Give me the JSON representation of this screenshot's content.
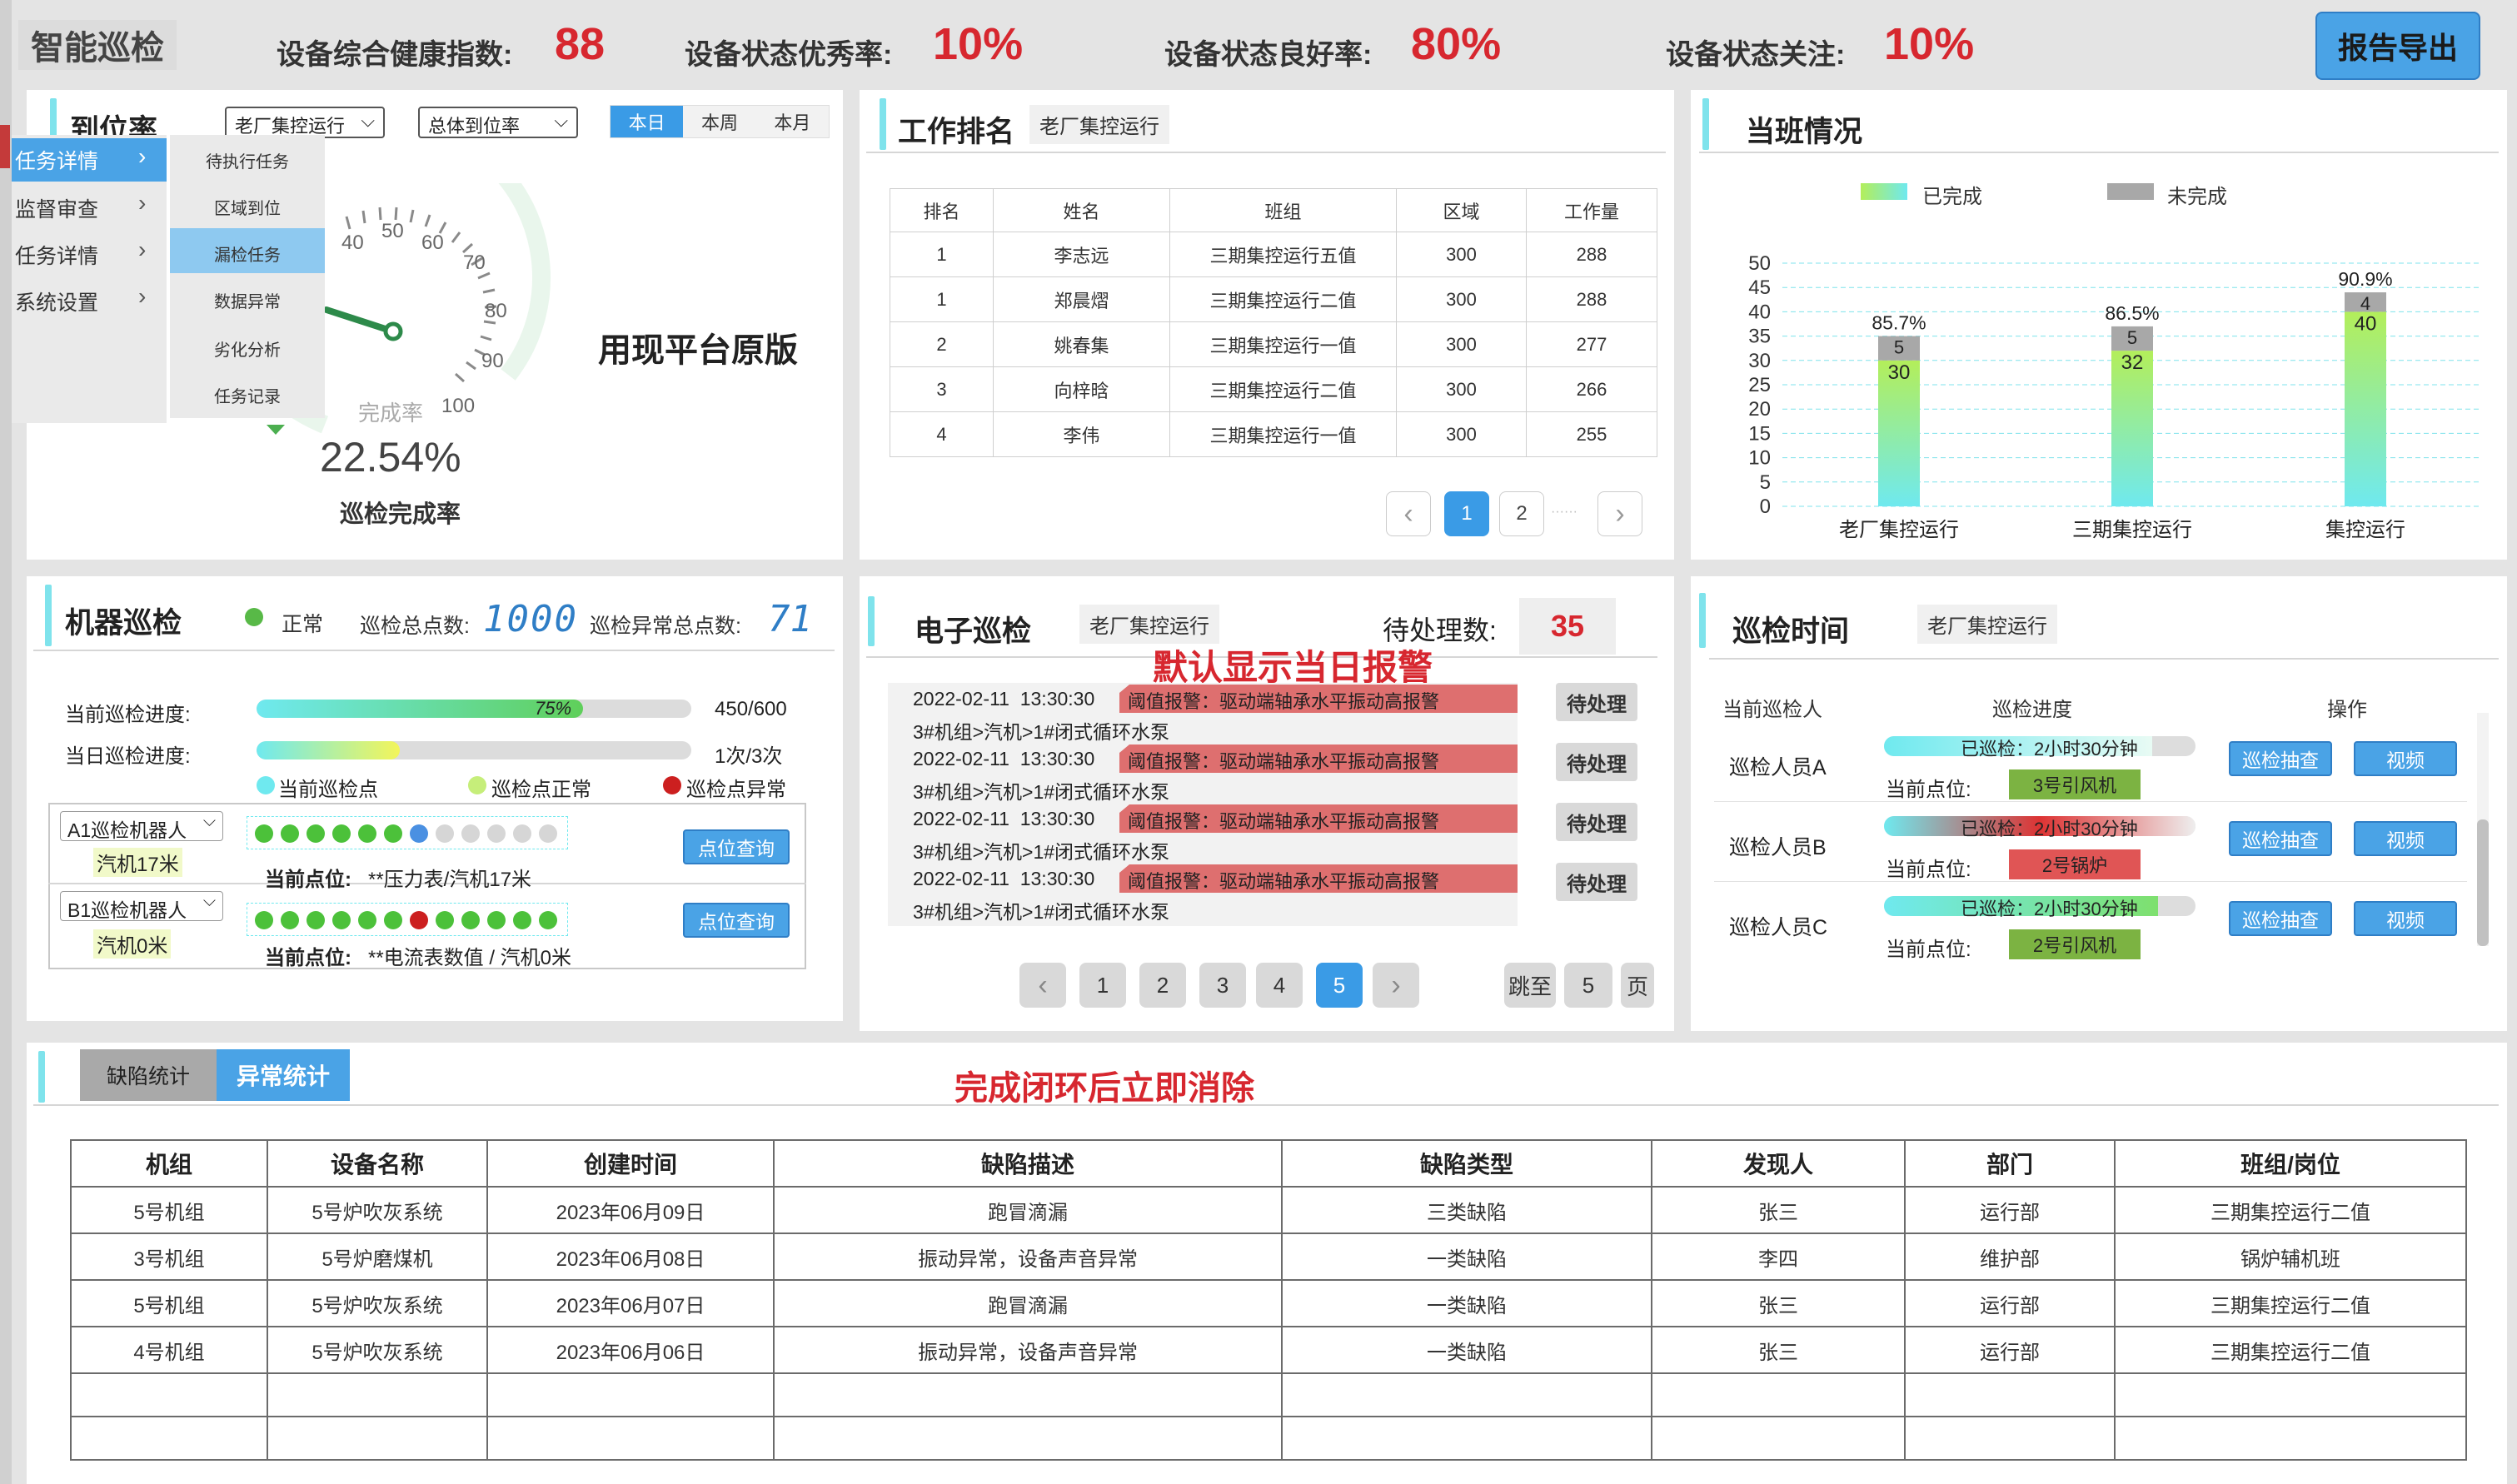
{
  "header": {
    "title": "智能巡检",
    "stats": [
      {
        "label": "设备综合健康指数:",
        "value": "88"
      },
      {
        "label": "设备状态优秀率:",
        "value": "10%"
      },
      {
        "label": "设备状态良好率:",
        "value": "80%"
      },
      {
        "label": "设备状态关注:",
        "value": "10%"
      }
    ],
    "export_label": "报告导出"
  },
  "arrival": {
    "title": "到位率",
    "select1": "老厂集控运行",
    "select2": "总体到位率",
    "tabs": [
      "本日",
      "本周",
      "本月"
    ],
    "active_tab": 0,
    "gauge_caption": "完成率",
    "gauge_ticks": [
      "40",
      "50",
      "60",
      "70",
      "80",
      "90",
      "100"
    ],
    "completion_value": "22.54%",
    "completion_label": "巡检完成率",
    "note": "用现平台原版"
  },
  "menu": {
    "items": [
      "任务详情",
      "监督审查",
      "任务详情",
      "系统设置"
    ],
    "submenu": [
      "待执行任务",
      "区域到位",
      "漏检任务",
      "数据异常",
      "劣化分析",
      "任务记录"
    ],
    "active_submenu": 2
  },
  "ranking": {
    "title": "工作排名",
    "tag": "老厂集控运行",
    "columns": [
      "排名",
      "姓名",
      "班组",
      "区域",
      "工作量"
    ],
    "rows": [
      [
        "1",
        "李志远",
        "三期集控运行五值",
        "300",
        "288"
      ],
      [
        "1",
        "郑晨熠",
        "三期集控运行二值",
        "300",
        "288"
      ],
      [
        "2",
        "姚春集",
        "三期集控运行一值",
        "300",
        "277"
      ],
      [
        "3",
        "向梓晗",
        "三期集控运行二值",
        "300",
        "266"
      ],
      [
        "4",
        "李伟",
        "三期集控运行一值",
        "300",
        "255"
      ]
    ],
    "pages": [
      "1",
      "2",
      "······"
    ],
    "current_page": 0
  },
  "shift": {
    "title": "当班情况",
    "legend": [
      "已完成",
      "未完成"
    ]
  },
  "chart_data": {
    "type": "bar",
    "stacked": true,
    "categories": [
      "老厂集控运行",
      "三期集控运行",
      "集控运行"
    ],
    "series": [
      {
        "name": "已完成",
        "values": [
          30,
          32,
          40
        ]
      },
      {
        "name": "未完成",
        "values": [
          5,
          5,
          4
        ]
      }
    ],
    "percent_labels": [
      "85.7%",
      "86.5%",
      "90.9%"
    ],
    "ylim": [
      0,
      50
    ],
    "yticks": [
      "0",
      "5",
      "10",
      "15",
      "20",
      "25",
      "30",
      "35",
      "40",
      "45",
      "50"
    ],
    "grid": true,
    "legend_position": "top",
    "colors": {
      "completed_top": "#b3ee5a",
      "completed_bottom": "#6fe9ef",
      "pending": "#a8a8a8"
    }
  },
  "robot": {
    "title": "机器巡检",
    "status_label": "正常",
    "total_label": "巡检总点数:",
    "total_value": "1000",
    "abnormal_label": "巡检异常总点数:",
    "abnormal_value": "71",
    "progress_current_label": "当前巡检进度:",
    "progress_current_pct": 75,
    "progress_current_text": "75%",
    "progress_current_count": "450/600",
    "progress_day_label": "当日巡检进度:",
    "progress_day_pct": 33,
    "progress_day_count": "1次/3次",
    "legend": [
      "当前巡检点",
      "巡检点正常",
      "巡检点异常"
    ],
    "robots": [
      {
        "name": "A1巡检机器人",
        "location": "汽机17米",
        "point_label": "当前点位:",
        "point": "**压力表/汽机17米",
        "button": "点位查询",
        "dots": [
          "ok",
          "ok",
          "ok",
          "ok",
          "ok",
          "ok",
          "cur",
          "idle",
          "idle",
          "idle",
          "idle",
          "idle"
        ]
      },
      {
        "name": "B1巡检机器人",
        "location": "汽机0米",
        "point_label": "当前点位:",
        "point": "**电流表数值 / 汽机0米",
        "button": "点位查询",
        "dots": [
          "ok",
          "ok",
          "ok",
          "ok",
          "ok",
          "ok",
          "err",
          "ok",
          "ok",
          "ok",
          "ok",
          "ok"
        ]
      }
    ]
  },
  "electronic": {
    "title": "电子巡检",
    "tag": "老厂集控运行",
    "pending_label": "待处理数:",
    "pending_value": "35",
    "note": "默认显示当日报警",
    "alarms": [
      {
        "time": "2022-02-11  13:30:30",
        "msg": "阈值报警：驱动端轴承水平振动高报警",
        "path": "3#机组>汽机>1#闭式循环水泵",
        "action": "待处理"
      },
      {
        "time": "2022-02-11  13:30:30",
        "msg": "阈值报警：驱动端轴承水平振动高报警",
        "path": "3#机组>汽机>1#闭式循环水泵",
        "action": "待处理"
      },
      {
        "time": "2022-02-11  13:30:30",
        "msg": "阈值报警：驱动端轴承水平振动高报警",
        "path": "3#机组>汽机>1#闭式循环水泵",
        "action": "待处理"
      },
      {
        "time": "2022-02-11  13:30:30",
        "msg": "阈值报警：驱动端轴承水平振动高报警",
        "path": "3#机组>汽机>1#闭式循环水泵",
        "action": "待处理"
      }
    ],
    "pages": [
      "1",
      "2",
      "3",
      "4",
      "5"
    ],
    "current_page": 4,
    "jump_label": "跳至",
    "jump_value": "5",
    "page_suffix": "页"
  },
  "patrol_time": {
    "title": "巡检时间",
    "tag": "老厂集控运行",
    "columns": [
      "当前巡检人",
      "巡检进度",
      "操作"
    ],
    "rows": [
      {
        "name": "巡检人员A",
        "progress_text": "已巡检：2小时30分钟",
        "point_label": "当前点位:",
        "point": "3号引风机",
        "point_color": "#7cb342",
        "bar": "cyan",
        "actions": [
          "巡检抽查",
          "视频"
        ]
      },
      {
        "name": "巡检人员B",
        "progress_text": "已巡检：2小时30分钟",
        "point_label": "当前点位:",
        "point": "2号锅炉",
        "point_color": "#e05555",
        "bar": "red",
        "actions": [
          "巡检抽查",
          "视频"
        ]
      },
      {
        "name": "巡检人员C",
        "progress_text": "已巡检：2小时30分钟",
        "point_label": "当前点位:",
        "point": "2号引风机",
        "point_color": "#7cb342",
        "bar": "green",
        "actions": [
          "巡检抽查",
          "视频"
        ]
      }
    ]
  },
  "defects": {
    "tabs": [
      "缺陷统计",
      "异常统计"
    ],
    "active_tab": 1,
    "note": "完成闭环后立即消除",
    "columns": [
      "机组",
      "设备名称",
      "创建时间",
      "缺陷描述",
      "缺陷类型",
      "发现人",
      "部门",
      "班组/岗位"
    ],
    "rows": [
      [
        "5号机组",
        "5号炉吹灰系统",
        "2023年06月09日",
        "跑冒滴漏",
        "三类缺陷",
        "张三",
        "运行部",
        "三期集控运行二值"
      ],
      [
        "3号机组",
        "5号炉磨煤机",
        "2023年06月08日",
        "振动异常，设备声音异常",
        "一类缺陷",
        "李四",
        "维护部",
        "锅炉辅机班"
      ],
      [
        "5号机组",
        "5号炉吹灰系统",
        "2023年06月07日",
        "跑冒滴漏",
        "一类缺陷",
        "张三",
        "运行部",
        "三期集控运行二值"
      ],
      [
        "4号机组",
        "5号炉吹灰系统",
        "2023年06月06日",
        "振动异常，设备声音异常",
        "一类缺陷",
        "张三",
        "运行部",
        "三期集控运行二值"
      ],
      [
        "",
        "",
        "",
        "",
        "",
        "",
        "",
        ""
      ],
      [
        "",
        "",
        "",
        "",
        "",
        "",
        "",
        ""
      ]
    ]
  }
}
